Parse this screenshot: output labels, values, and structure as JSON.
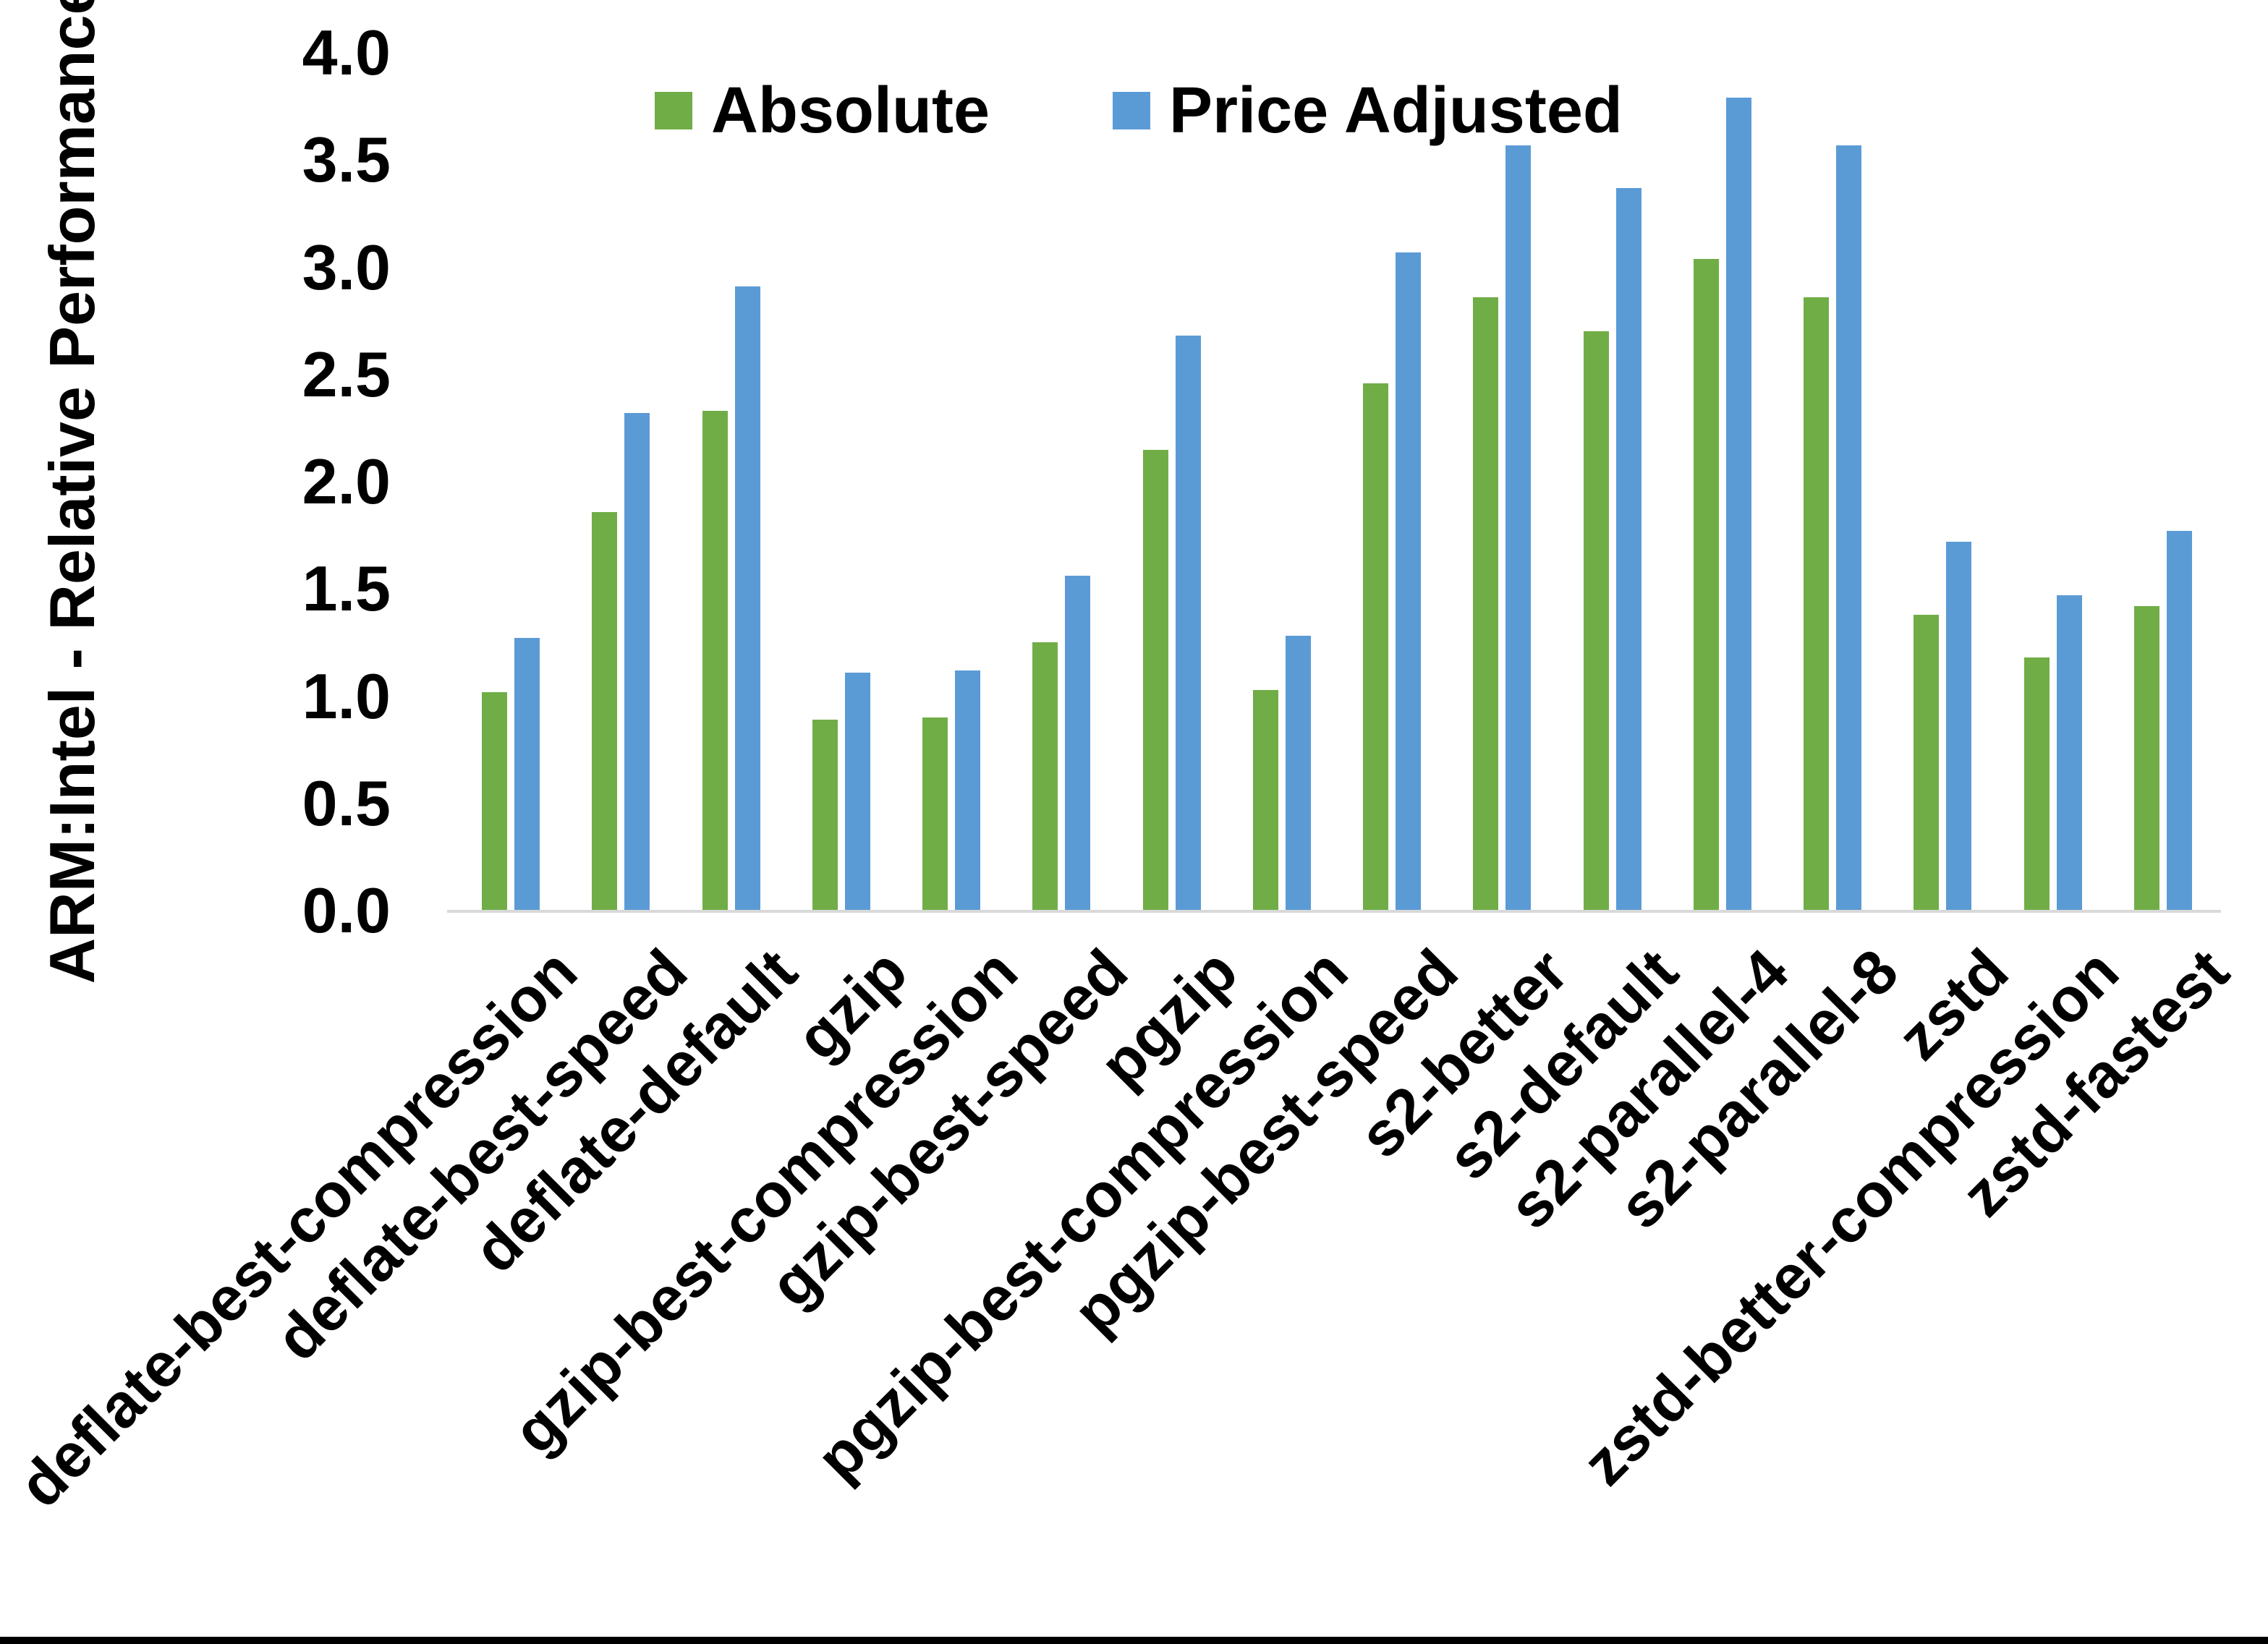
{
  "chart_data": {
    "type": "bar",
    "title": "",
    "xlabel": "",
    "ylabel": "ARM:Intel - Relative Performance",
    "ylim": [
      0,
      4
    ],
    "ytick_labels": [
      "0.0",
      "0.5",
      "1.0",
      "1.5",
      "2.0",
      "2.5",
      "3.0",
      "3.5",
      "4.0"
    ],
    "grid": false,
    "legend_position": "top-center",
    "categories": [
      "deflate-best-compression",
      "deflate-best-speed",
      "deflate-default",
      "gzip",
      "gzip-best-compression",
      "gzip-best-speed",
      "pgzip",
      "pgzip-best-compression",
      "pgzip-best-speed",
      "s2-better",
      "s2-default",
      "s2-parallel-4",
      "s2-parallel-8",
      "zstd",
      "zstd-better-compression",
      "zstd-fastest"
    ],
    "series": [
      {
        "name": "Absolute",
        "color": "#70AD47",
        "values": [
          1.02,
          1.86,
          2.33,
          0.89,
          0.9,
          1.25,
          2.15,
          1.03,
          2.46,
          2.86,
          2.7,
          3.04,
          2.86,
          1.38,
          1.18,
          1.42
        ]
      },
      {
        "name": "Price Adjusted",
        "color": "#5B9BD5",
        "values": [
          1.27,
          2.32,
          2.91,
          1.11,
          1.12,
          1.56,
          2.68,
          1.28,
          3.07,
          3.57,
          3.37,
          3.79,
          3.57,
          1.72,
          1.47,
          1.77
        ]
      }
    ]
  },
  "colors": {
    "axis_line": "#D9D9D9",
    "text": "#000000",
    "background": "#FFFFFF",
    "bottom_frame": "#000000"
  }
}
